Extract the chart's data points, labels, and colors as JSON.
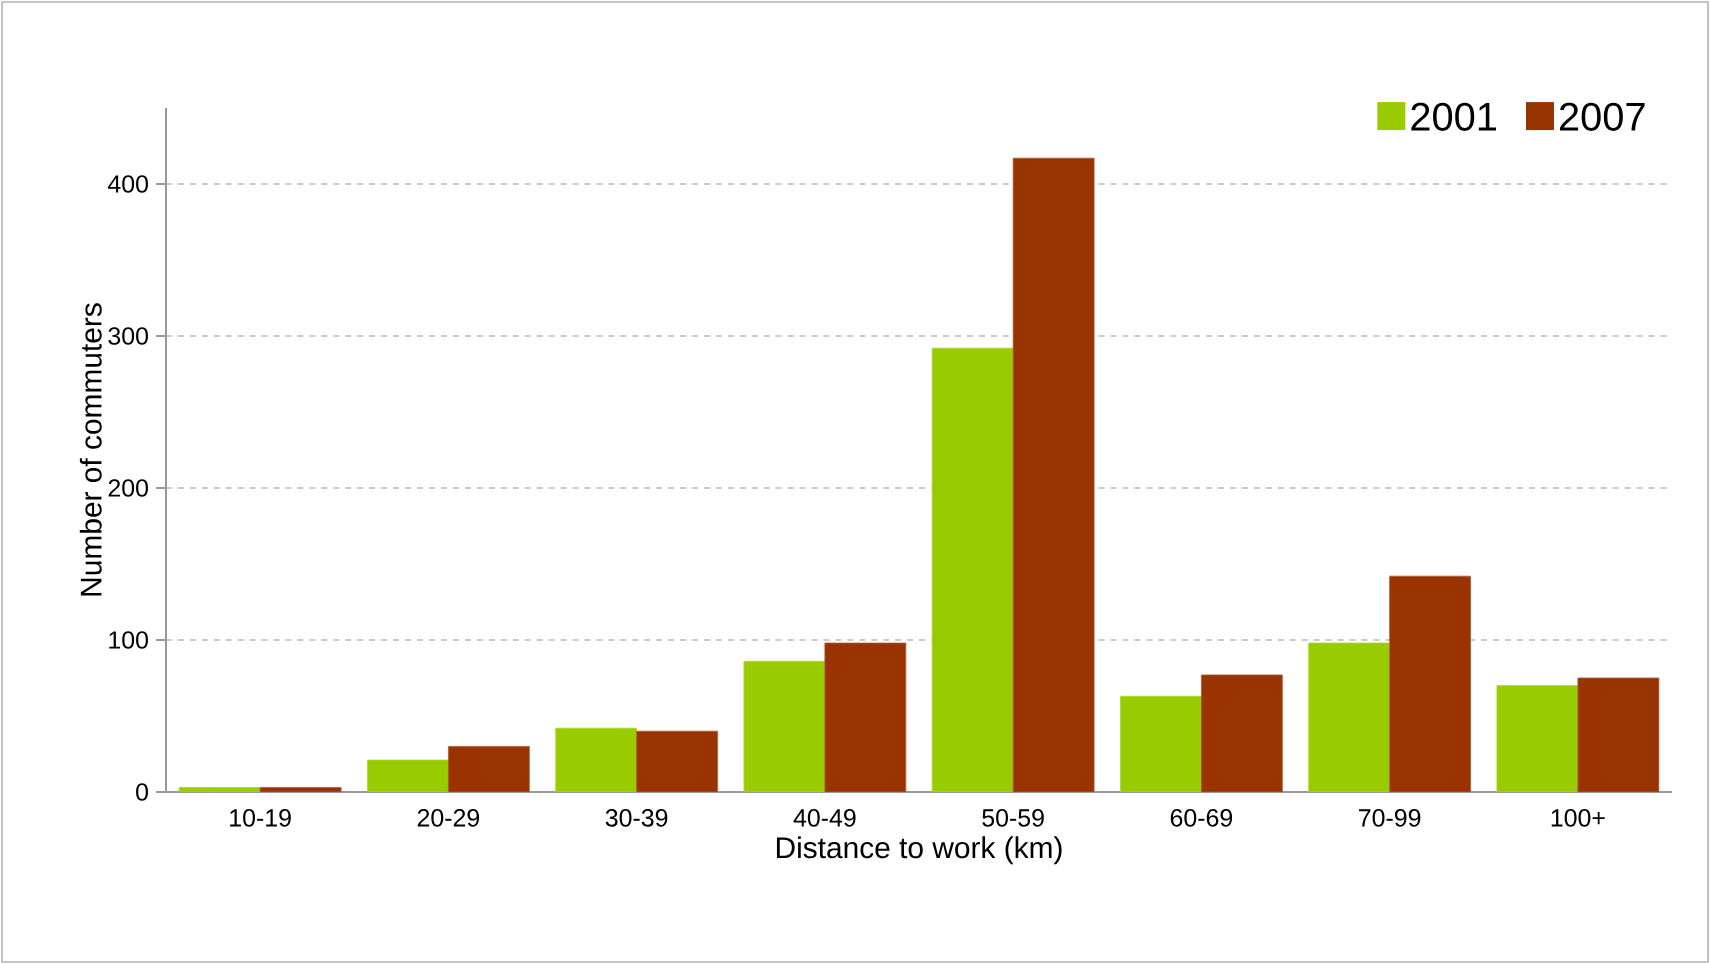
{
  "chart_data": {
    "type": "bar",
    "xlabel": "Distance to work (km)",
    "ylabel": "Number of commuters",
    "categories": [
      "10-19",
      "20-29",
      "30-39",
      "40-49",
      "50-59",
      "60-69",
      "70-99",
      "100+"
    ],
    "series": [
      {
        "name": "2001",
        "color": "#99cc00",
        "values": [
          3,
          21,
          42,
          86,
          292,
          63,
          98,
          70
        ]
      },
      {
        "name": "2007",
        "color": "#993300",
        "values": [
          3,
          30,
          40,
          98,
          417,
          77,
          142,
          75
        ]
      }
    ],
    "ylim": [
      0,
      450
    ],
    "yticks": [
      0,
      100,
      200,
      300,
      400
    ],
    "grid": "y",
    "legend": "top right"
  }
}
